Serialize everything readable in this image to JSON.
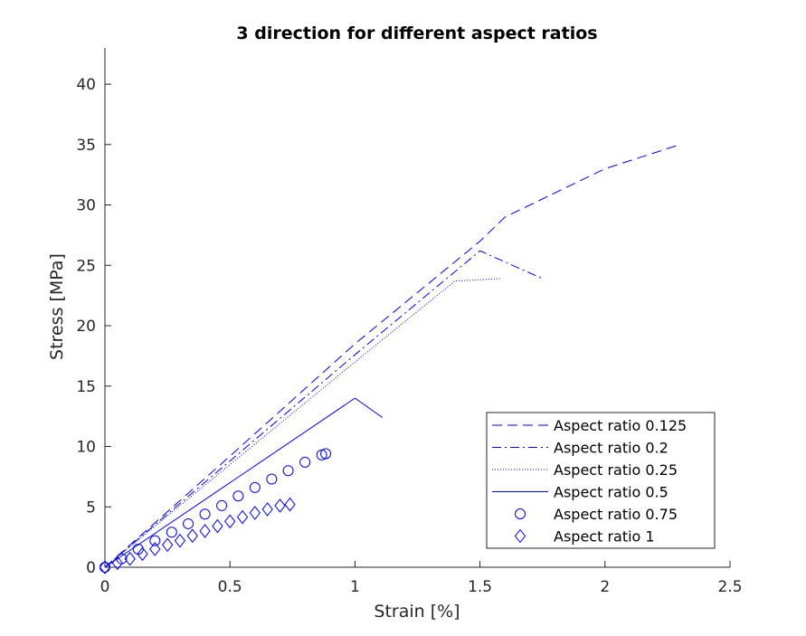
{
  "chart_data": {
    "type": "line",
    "title": "3 direction for different aspect ratios",
    "xlabel": "Strain [%]",
    "ylabel": "Stress [MPa]",
    "xlim": [
      0,
      2.5
    ],
    "ylim": [
      0,
      43
    ],
    "xticks": [
      0,
      0.5,
      1,
      1.5,
      2,
      2.5
    ],
    "xtick_labels": [
      "0",
      "0.5",
      "1",
      "1.5",
      "2",
      "2.5"
    ],
    "yticks": [
      0,
      5,
      10,
      15,
      20,
      25,
      30,
      35,
      40
    ],
    "ytick_labels": [
      "0",
      "5",
      "10",
      "15",
      "20",
      "25",
      "30",
      "35",
      "40"
    ],
    "grid": false,
    "legend_position": "bottom-right",
    "color": "#0000ff",
    "series": [
      {
        "name": "Aspect ratio 0.125",
        "style": "dashed",
        "x": [
          0,
          0.5,
          1.0,
          1.5,
          1.6,
          2.0,
          2.3
        ],
        "y": [
          0,
          9.2,
          18.5,
          27.0,
          29.0,
          33.0,
          35.0
        ]
      },
      {
        "name": "Aspect ratio 0.2",
        "style": "dashdot",
        "x": [
          0,
          0.5,
          1.0,
          1.5,
          1.75
        ],
        "y": [
          0,
          8.8,
          17.6,
          26.2,
          23.9
        ]
      },
      {
        "name": "Aspect ratio 0.25",
        "style": "dotted",
        "x": [
          0,
          0.5,
          1.0,
          1.4,
          1.58
        ],
        "y": [
          0,
          8.5,
          17.0,
          23.7,
          23.9
        ]
      },
      {
        "name": "Aspect ratio 0.5",
        "style": "solid",
        "x": [
          0,
          1.0,
          1.11
        ],
        "y": [
          0,
          14.0,
          12.4
        ]
      },
      {
        "name": "Aspect ratio 0.75",
        "style": "circle",
        "x": [
          0,
          0.067,
          0.133,
          0.2,
          0.267,
          0.333,
          0.4,
          0.467,
          0.533,
          0.6,
          0.667,
          0.733,
          0.8,
          0.867,
          0.883
        ],
        "y": [
          0,
          0.7,
          1.5,
          2.2,
          2.9,
          3.6,
          4.4,
          5.1,
          5.9,
          6.6,
          7.3,
          8.0,
          8.7,
          9.3,
          9.4
        ]
      },
      {
        "name": "Aspect ratio 1",
        "style": "diamond",
        "x": [
          0,
          0.05,
          0.1,
          0.15,
          0.2,
          0.25,
          0.3,
          0.35,
          0.4,
          0.45,
          0.5,
          0.55,
          0.6,
          0.65,
          0.7,
          0.74
        ],
        "y": [
          0,
          0.35,
          0.7,
          1.1,
          1.5,
          1.85,
          2.2,
          2.6,
          3.0,
          3.4,
          3.8,
          4.15,
          4.5,
          4.8,
          5.1,
          5.2
        ]
      }
    ]
  }
}
